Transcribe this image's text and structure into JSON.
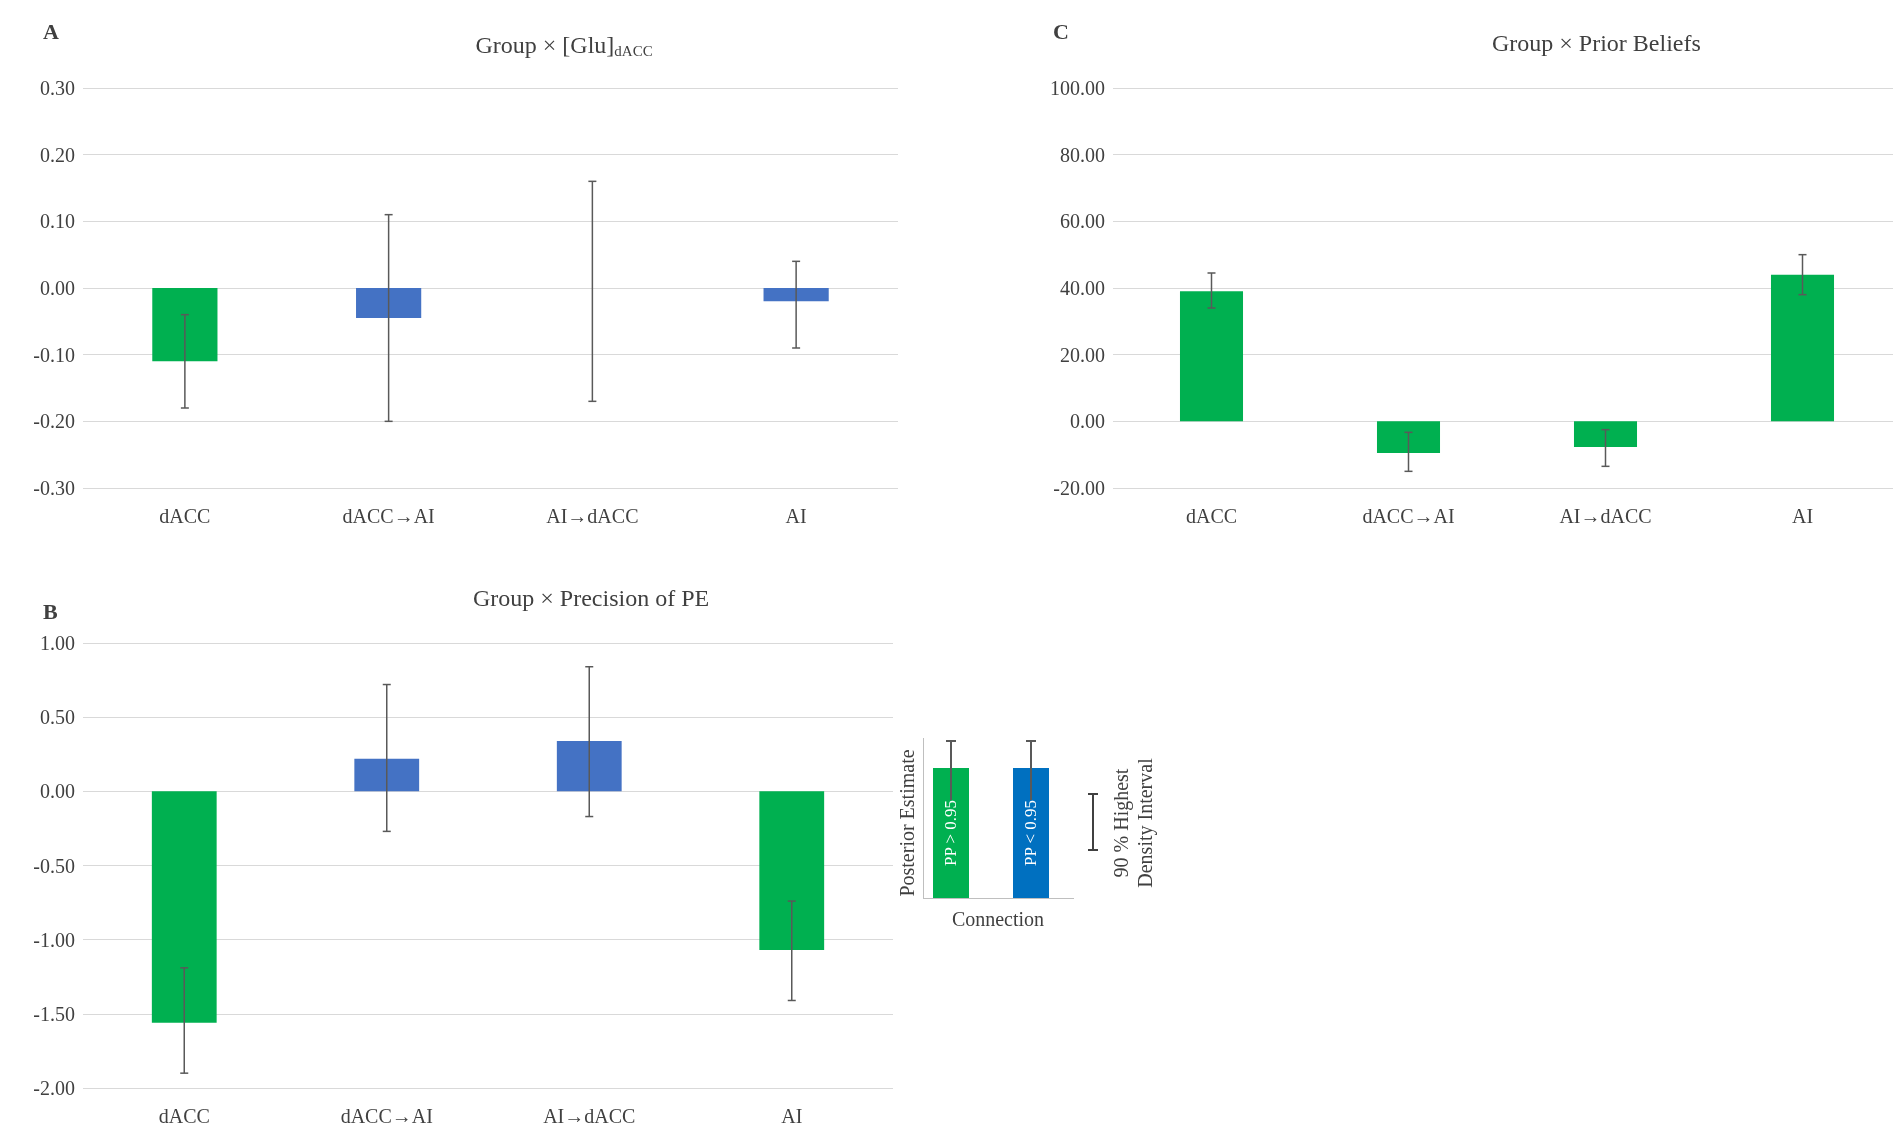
{
  "chart_data": [
    {
      "type": "bar",
      "title": "Group × [Glu]$_{dACC}$",
      "annotations": [
        "A"
      ],
      "categories": [
        "dACC",
        "dACC→AI",
        "AI→dACC",
        "AI"
      ],
      "values": [
        -0.11,
        -0.045,
        0.0,
        -0.02
      ],
      "colors": [
        "#00b050",
        "#4472c4",
        "#4472c4",
        "#4472c4"
      ],
      "errors": [
        [
          -0.18,
          -0.04
        ],
        [
          -0.2,
          0.11
        ],
        [
          -0.17,
          0.16
        ],
        [
          -0.09,
          0.04
        ]
      ],
      "ylim": [
        -0.3,
        0.3
      ],
      "yticks": [
        {
          "value": -0.3,
          "label": "-0.30"
        },
        {
          "value": -0.2,
          "label": "-0.20"
        },
        {
          "value": -0.1,
          "label": "-0.10"
        },
        {
          "value": 0,
          "label": "0.00"
        },
        {
          "value": 0.1,
          "label": "0.10"
        },
        {
          "value": 0.2,
          "label": "0.20"
        },
        {
          "value": 0.3,
          "label": "0.30"
        }
      ],
      "grid": "y"
    },
    {
      "type": "bar",
      "title": "Group × Prior Beliefs",
      "annotations": [
        "C"
      ],
      "categories": [
        "dACC",
        "dACC→AI",
        "AI→dACC",
        "AI"
      ],
      "values": [
        39,
        -9.5,
        -7.7,
        44
      ],
      "colors": [
        "#00b050",
        "#00b050",
        "#00b050",
        "#00b050"
      ],
      "errors": [
        [
          34,
          44.5
        ],
        [
          -15,
          -3.3
        ],
        [
          -13.5,
          -2.5
        ],
        [
          38,
          50
        ]
      ],
      "ylim": [
        -20,
        100
      ],
      "yticks": [
        {
          "value": -20,
          "label": "-20.00"
        },
        {
          "value": 0,
          "label": "0.00"
        },
        {
          "value": 20,
          "label": "20.00"
        },
        {
          "value": 40,
          "label": "40.00"
        },
        {
          "value": 60,
          "label": "60.00"
        },
        {
          "value": 80,
          "label": "80.00"
        },
        {
          "value": 100,
          "label": "100.00"
        }
      ],
      "grid": "y"
    },
    {
      "type": "bar",
      "title": "Group × Precision of PE",
      "annotations": [
        "B"
      ],
      "categories": [
        "dACC",
        "dACC→AI",
        "AI→dACC",
        "AI"
      ],
      "values": [
        -1.56,
        0.22,
        0.34,
        -1.07
      ],
      "colors": [
        "#00b050",
        "#4472c4",
        "#4472c4",
        "#00b050"
      ],
      "errors": [
        [
          -1.9,
          -1.19
        ],
        [
          -0.27,
          0.72
        ],
        [
          -0.17,
          0.84
        ],
        [
          -1.41,
          -0.74
        ]
      ],
      "ylim": [
        -2,
        1
      ],
      "yticks": [
        {
          "value": -2,
          "label": "-2.00"
        },
        {
          "value": -1.5,
          "label": "-1.50"
        },
        {
          "value": -1,
          "label": "-1.00"
        },
        {
          "value": -0.5,
          "label": "-0.50"
        },
        {
          "value": 0,
          "label": "0.00"
        },
        {
          "value": 0.5,
          "label": "0.50"
        },
        {
          "value": 1,
          "label": "1.00"
        }
      ],
      "grid": "y"
    },
    {
      "type": "other",
      "xlabel": "Connection",
      "ylabel": "Posterior Estimate",
      "annotations": [
        "PP > 0.95",
        "PP < 0.95",
        "90 % Highest Density Interval"
      ],
      "colors": [
        "#00b050",
        "#0070c0"
      ]
    }
  ]
}
